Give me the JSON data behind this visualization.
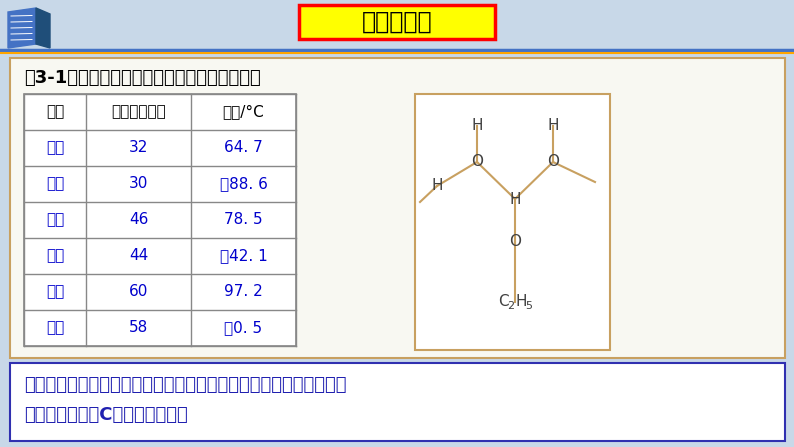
{
  "title": "思考与交流",
  "title_bg": "#FFFF00",
  "title_border": "#FF0000",
  "title_text_color": "#000000",
  "slide_bg": "#C8D8E8",
  "table_title": "表3-1相对分子质量相近的醇与烷烃的沸点比较",
  "table_title_color": "#000000",
  "col_headers": [
    "名称",
    "相对分子质量",
    "沸点/°C"
  ],
  "rows": [
    [
      "甲醇",
      "32",
      "64. 7"
    ],
    [
      "乙烷",
      "30",
      "－88. 6"
    ],
    [
      "乙醇",
      "46",
      "78. 5"
    ],
    [
      "丙烷",
      "44",
      "－42. 1"
    ],
    [
      "丙醇",
      "60",
      "97. 2"
    ],
    [
      "丁烷",
      "58",
      "－0. 5"
    ]
  ],
  "alcohol_rows": [
    0,
    2,
    4
  ],
  "alcohol_color": "#0000CC",
  "alkane_color": "#0000CC",
  "normal_text_color": "#000000",
  "conclusion_bg": "#FFFFFF",
  "conclusion_border": "#3030B0",
  "conclusion_text_line1": "结论：相对分子质量相近的醇比烷烃的沸点高得多。因为醇分子间可",
  "conclusion_text_line2": "以形成氢键。且C数越多沸点越高",
  "conclusion_color": "#2020B0",
  "molecule_border": "#C8A060",
  "table_border": "#888888",
  "bond_color": "#C8A060",
  "atom_color": "#404040",
  "content_outer_border": "#C8A060",
  "content_outer_bg": "#FAFAFA",
  "header_separator_blue": "#4472C4",
  "header_separator_orange": "#FFA500"
}
